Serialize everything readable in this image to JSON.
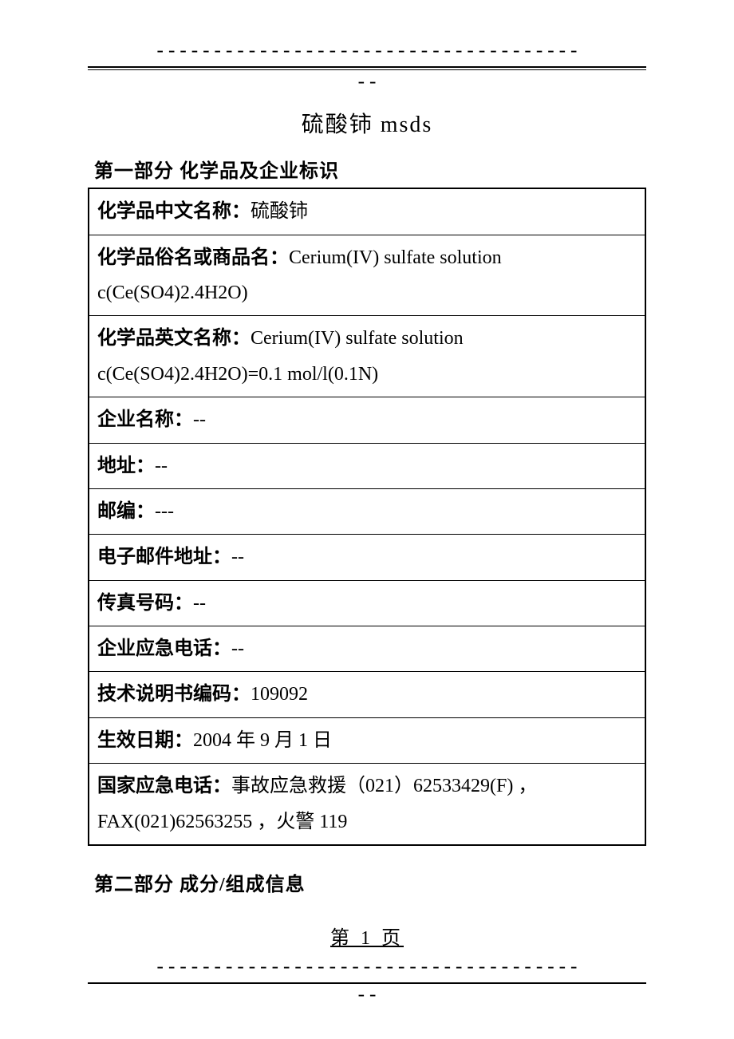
{
  "header": {
    "dash_top": "-------------------------------------",
    "dash_bottom": "--"
  },
  "document": {
    "title": "硫酸铈 msds"
  },
  "section1": {
    "heading": "第一部分 化学品及企业标识",
    "rows": [
      {
        "label": "化学品中文名称：",
        "value": "硫酸铈",
        "wrap": false
      },
      {
        "label": "化学品俗名或商品名：",
        "value": "Cerium(IV) sulfate solution c(Ce(SO4)2.4H2O)",
        "wrap": true
      },
      {
        "label": "化学品英文名称：",
        "value": "Cerium(IV) sulfate solution c(Ce(SO4)2.4H2O)=0.1 mol/l(0.1N)",
        "wrap": true
      },
      {
        "label": "企业名称：",
        "value": "--",
        "wrap": false
      },
      {
        "label": "地址：",
        "value": "--",
        "wrap": false
      },
      {
        "label": "邮编：",
        "value": "---",
        "wrap": false
      },
      {
        "label": "电子邮件地址：",
        "value": "--",
        "wrap": false
      },
      {
        "label": "传真号码：",
        "value": "--",
        "wrap": false
      },
      {
        "label": "企业应急电话：",
        "value": "--",
        "wrap": false
      },
      {
        "label": "技术说明书编码：",
        "value": "109092",
        "wrap": false
      },
      {
        "label": "生效日期：",
        "value": "2004 年 9 月 1 日",
        "wrap": false
      },
      {
        "label": "国家应急电话：",
        "value": "事故应急救援（021）62533429(F)  ，FAX(021)62563255 ，火警 119",
        "wrap": true
      }
    ]
  },
  "section2": {
    "heading": "第二部分 成分/组成信息"
  },
  "footer": {
    "page_number": "第 1 页",
    "dash_top": "-------------------------------------",
    "dash_bottom": "--"
  },
  "style": {
    "background_color": "#ffffff",
    "text_color": "#000000",
    "font_family": "SimSun",
    "title_fontsize": 28,
    "body_fontsize": 24,
    "heading_fontsize": 24,
    "table_border_width": 2,
    "row_border_width": 1.5
  }
}
